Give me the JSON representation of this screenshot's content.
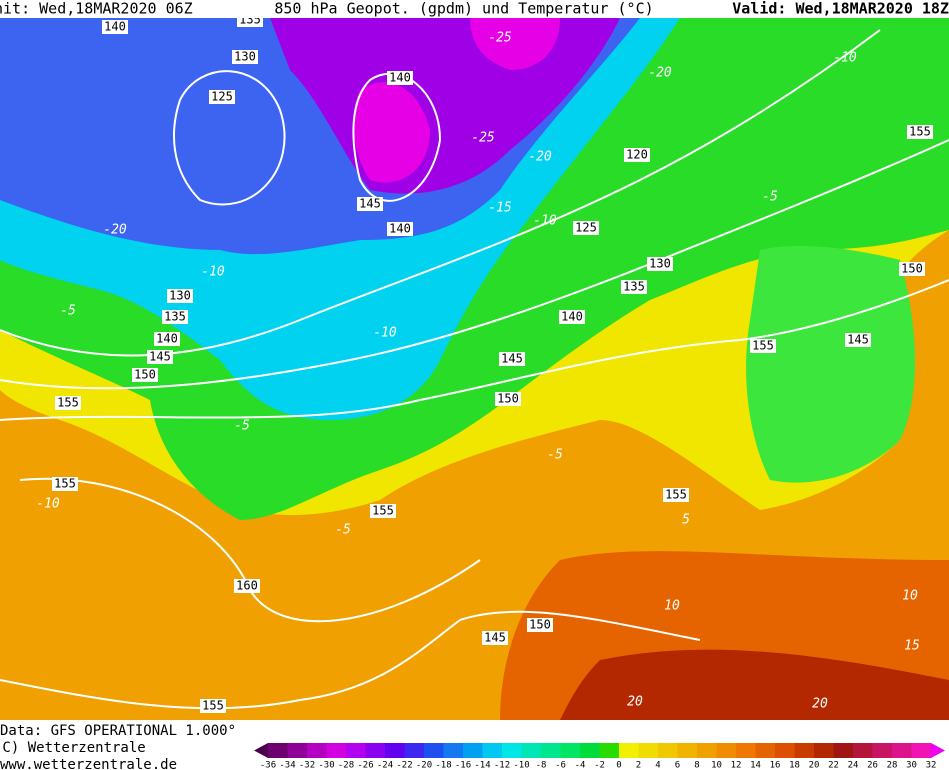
{
  "header": {
    "init": "nit: Wed,18MAR2020 06Z",
    "title": "850 hPa Geopot. (gpdm) und Temperatur (°C)",
    "valid": "Valid: Wed,18MAR2020 18Z"
  },
  "contour_labels": [
    "135",
    "140",
    "130",
    "125",
    "140",
    "145",
    "140",
    "130",
    "135",
    "140",
    "145",
    "150",
    "155",
    "120",
    "125",
    "130",
    "135",
    "140",
    "145",
    "150",
    "155",
    "150",
    "155",
    "145",
    "155",
    "155",
    "155",
    "160",
    "145",
    "150",
    "155"
  ],
  "temperature_labels": [
    "-10",
    "-5",
    "-10",
    "-5",
    "-5",
    "-5",
    "-15",
    "-10",
    "-20",
    "-25",
    "-25",
    "-20",
    "-10",
    "-5",
    "5",
    "10",
    "10",
    "15",
    "20",
    "20",
    "-10",
    "-20"
  ],
  "footer": {
    "data": "Data: GFS OPERATIONAL 1.000°",
    "copyright": "(C) Wetterzentrale",
    "url": "www.wetterzentrale.de"
  },
  "colorbar": {
    "labels": [
      "-36",
      "-34",
      "-32",
      "-30",
      "-28",
      "-26",
      "-24",
      "-22",
      "-20",
      "-18",
      "-16",
      "-14",
      "-12",
      "-10",
      "-8",
      "-6",
      "-4",
      "-2",
      "0",
      "2",
      "4",
      "6",
      "8",
      "10",
      "12",
      "14",
      "16",
      "18",
      "20",
      "22",
      "24",
      "26",
      "28",
      "30",
      "32"
    ],
    "colors": [
      "#4b0050",
      "#6c006e",
      "#8e0096",
      "#b400c0",
      "#d200e0",
      "#b400f0",
      "#8c00f0",
      "#6400f0",
      "#3c28f0",
      "#1e50f0",
      "#1478f0",
      "#00a0f0",
      "#00c8f0",
      "#00e6e6",
      "#00e6b4",
      "#00e68c",
      "#00e664",
      "#00dc3c",
      "#28dc00",
      "#f0f000",
      "#f0dc00",
      "#f0c800",
      "#f0b400",
      "#f0a000",
      "#f08c00",
      "#f07800",
      "#e66400",
      "#dc5000",
      "#c83c00",
      "#b42800",
      "#a01414",
      "#b4143c",
      "#c81464",
      "#dc148c",
      "#f014b4",
      "#f000f0"
    ]
  }
}
